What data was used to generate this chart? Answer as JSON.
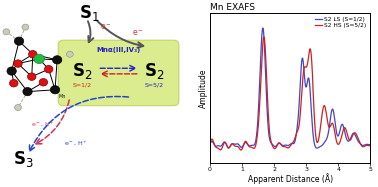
{
  "title": "Mn EXAFS",
  "xlabel": "Apparent Distance (Å)",
  "ylabel": "Amplitude",
  "xlim": [
    0,
    5
  ],
  "legend_ls": "S2 LS (S=1/2)",
  "legend_hs": "S2 HS (S=5/2)",
  "color_ls": "#4444cc",
  "color_hs": "#cc2222",
  "s1_label": "S$_1$",
  "s2_label_left": "S$_2$",
  "s2_label_right": "S$_2$",
  "s3_label": "S$_3$",
  "mn_label": "Mnα(III,IV₃)",
  "s_half": "S=1/2",
  "s_five_half": "S=5/2"
}
